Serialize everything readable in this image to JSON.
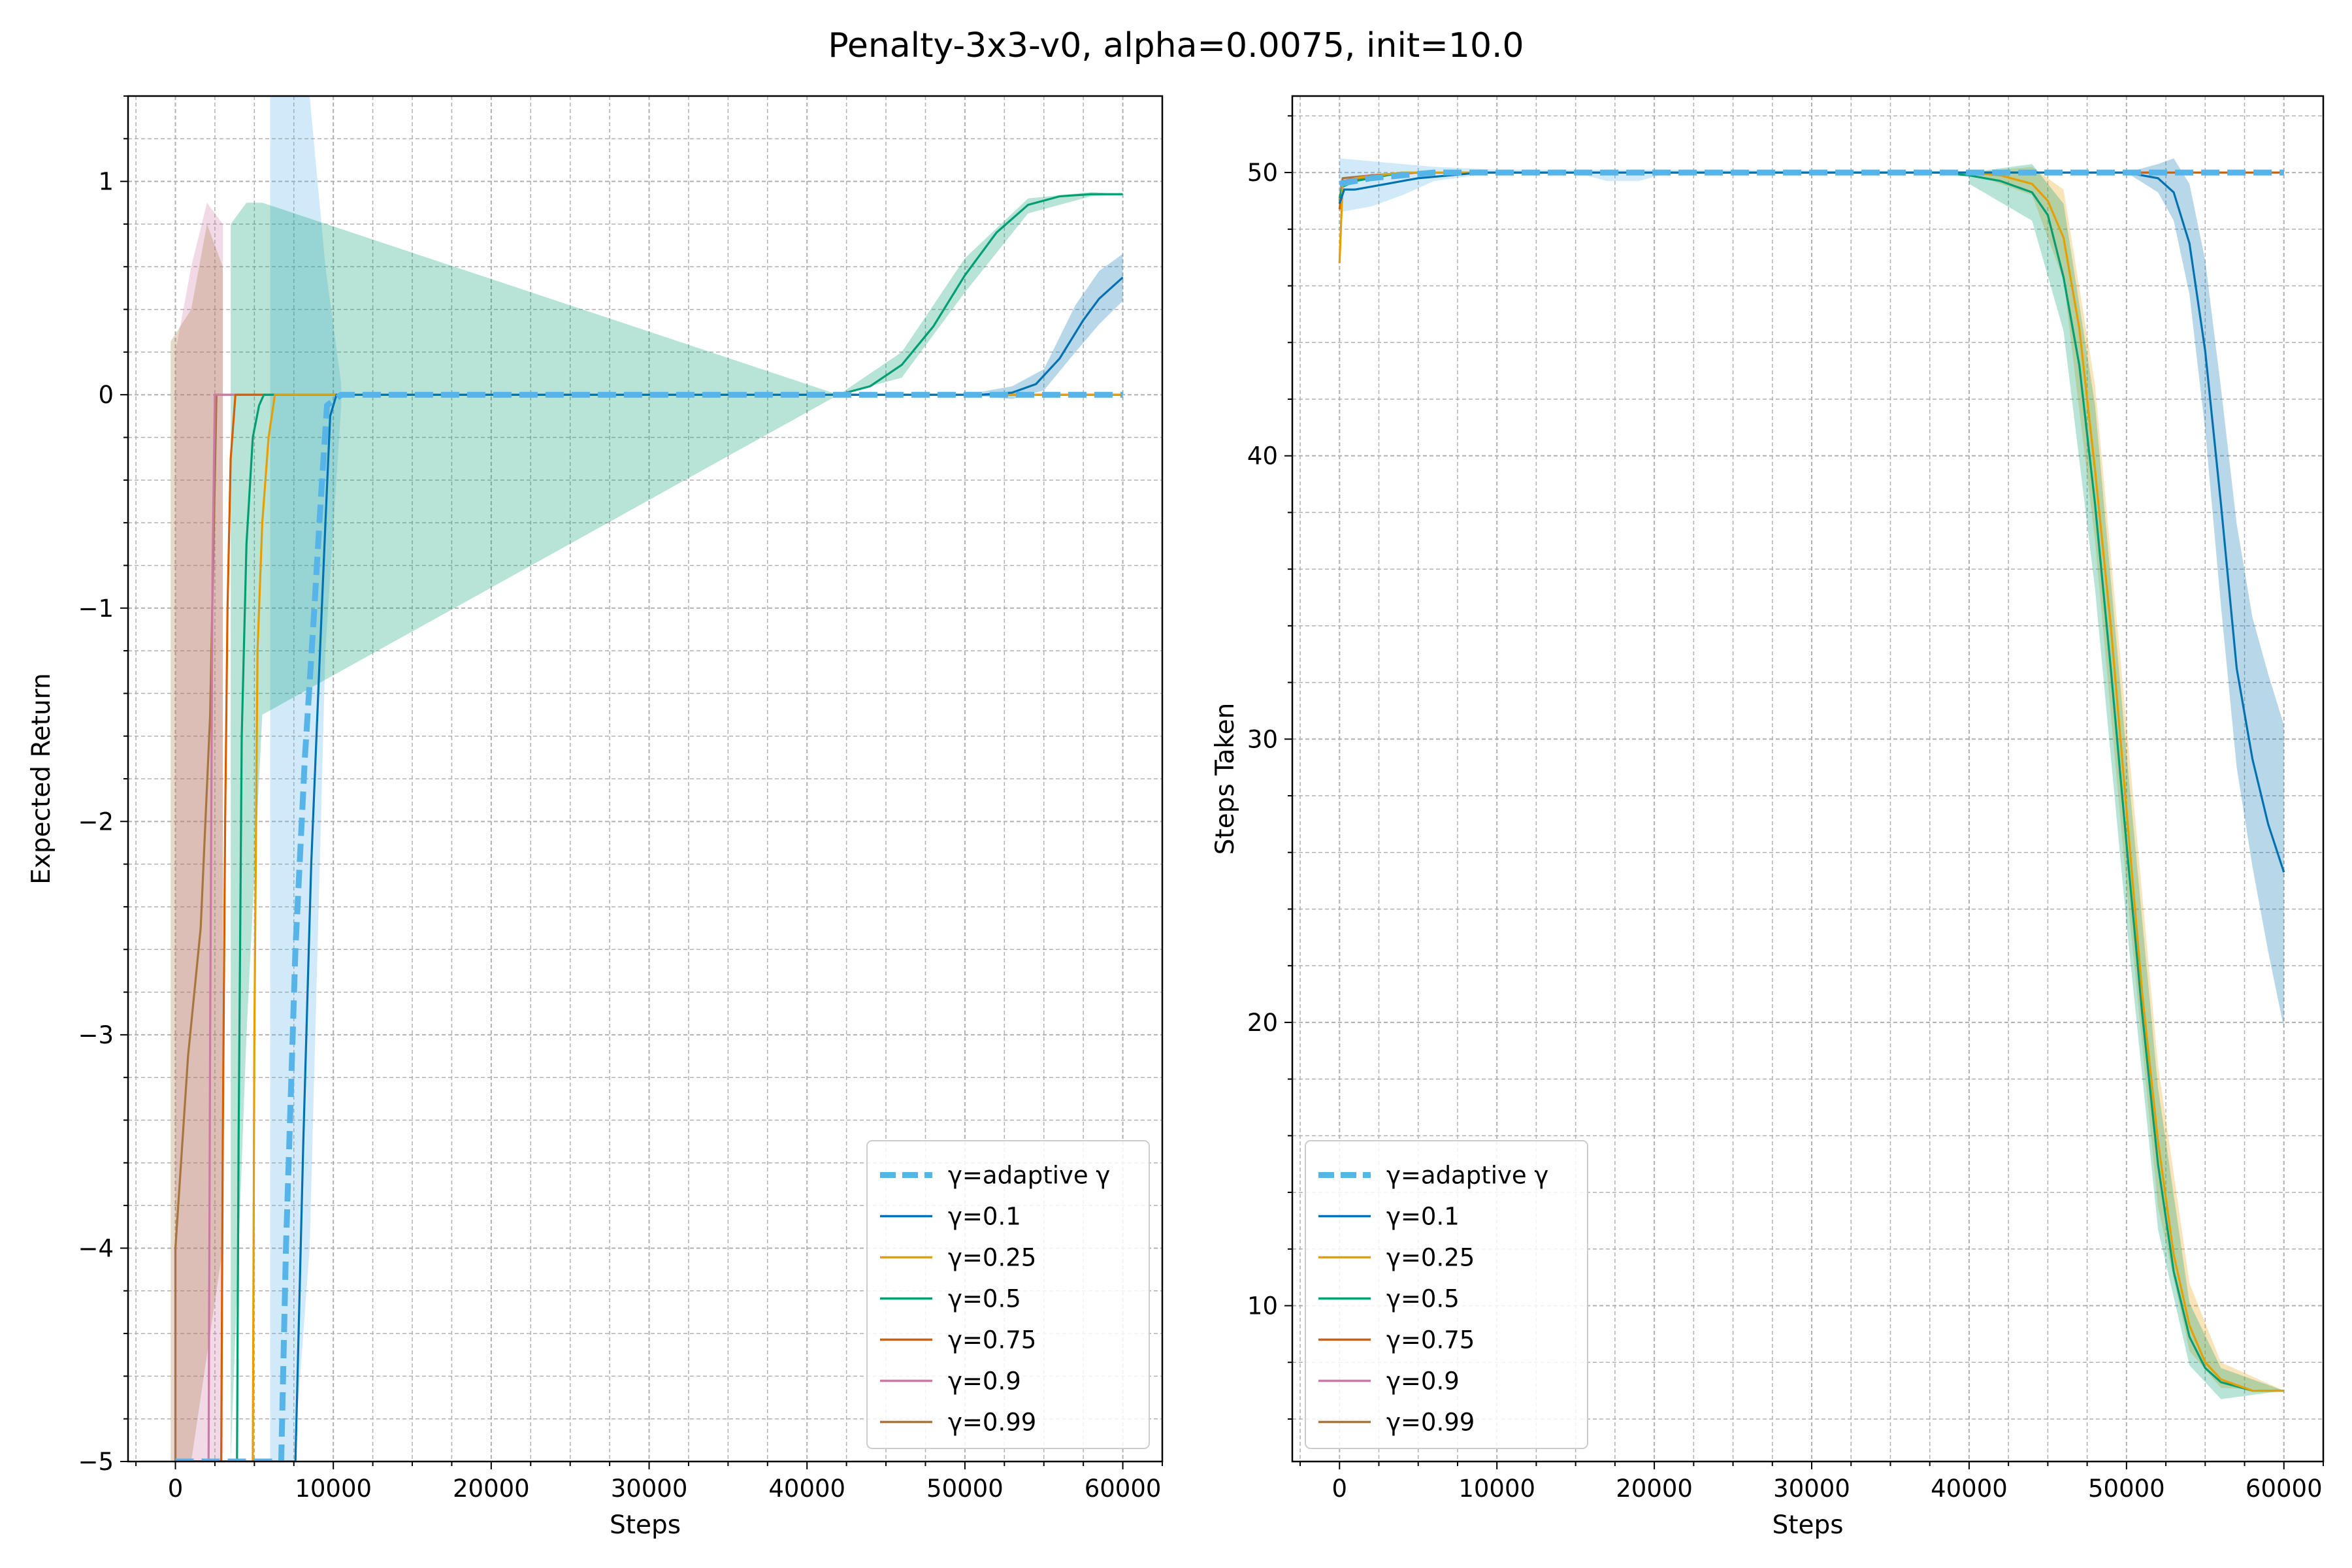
{
  "figure": {
    "title": "Penalty-3x3-v0, alpha=0.0075, init=10.0"
  },
  "legend": {
    "placement": "lower-right",
    "entries": [
      {
        "label": "γ=adaptive γ",
        "color": "#56b4e9",
        "style": "dashed"
      },
      {
        "label": "γ=0.1",
        "color": "#0072b2",
        "style": "solid"
      },
      {
        "label": "γ=0.25",
        "color": "#e69f00",
        "style": "solid"
      },
      {
        "label": "γ=0.5",
        "color": "#009e73",
        "style": "solid"
      },
      {
        "label": "γ=0.75",
        "color": "#d55e00",
        "style": "solid"
      },
      {
        "label": "γ=0.9",
        "color": "#cc79a7",
        "style": "solid"
      },
      {
        "label": "γ=0.99",
        "color": "#a6763c",
        "style": "solid"
      }
    ]
  },
  "chart_data": [
    {
      "type": "line",
      "id": "left",
      "xlabel": "Steps",
      "ylabel": "Expected Return",
      "xlim": [
        -3000,
        62500
      ],
      "ylim": [
        -5,
        1.4
      ],
      "xticks": [
        0,
        10000,
        20000,
        30000,
        40000,
        50000,
        60000
      ],
      "xtick_labels": [
        "0",
        "10000",
        "20000",
        "30000",
        "40000",
        "50000",
        "60000"
      ],
      "yticks": [
        -5,
        -4,
        -3,
        -2,
        -1,
        0,
        1
      ],
      "ytick_labels": [
        "−5",
        "−4",
        "−3",
        "−2",
        "−1",
        "0",
        "1"
      ],
      "grid": true,
      "legend": "lower-right",
      "series": [
        {
          "legend_index": 0,
          "x": [
            0,
            6700,
            7000,
            7600,
            8200,
            8800,
            9200,
            9600,
            10500,
            60000
          ],
          "y": [
            -5,
            -5,
            -4,
            -2.6,
            -1.7,
            -1.0,
            -0.5,
            -0.05,
            0,
            0
          ],
          "band_x": [
            6000,
            7500,
            8500,
            9500,
            10500
          ],
          "band_lo": [
            -5,
            -5,
            -4,
            -1.2,
            -0.05
          ],
          "band_hi": [
            1.4,
            1.4,
            1.4,
            0.6,
            0.05
          ]
        },
        {
          "legend_index": 1,
          "x": [
            0,
            7600,
            8100,
            8600,
            9100,
            9500,
            9800,
            10200,
            51000,
            53000,
            54500,
            56000,
            57500,
            58500,
            60000
          ],
          "y": [
            -5,
            -5,
            -3.5,
            -2.2,
            -1.3,
            -0.6,
            -0.1,
            0,
            0,
            0.01,
            0.05,
            0.17,
            0.35,
            0.45,
            0.55
          ],
          "band_x": [
            50000,
            53000,
            55000,
            57000,
            58500,
            60000
          ],
          "band_lo": [
            0,
            -0.02,
            0.02,
            0.2,
            0.33,
            0.44
          ],
          "band_hi": [
            0,
            0.04,
            0.12,
            0.42,
            0.58,
            0.66
          ]
        },
        {
          "legend_index": 2,
          "x": [
            0,
            4900,
            5000,
            5200,
            5500,
            5900,
            6300,
            60000
          ],
          "y": [
            -5,
            -5,
            -3,
            -1.2,
            -0.6,
            -0.2,
            0,
            0
          ],
          "band_x": [],
          "band_lo": [],
          "band_hi": []
        },
        {
          "legend_index": 3,
          "x": [
            0,
            3900,
            4000,
            4200,
            4500,
            4900,
            5300,
            5600,
            42000,
            44000,
            46000,
            48000,
            50000,
            52000,
            54000,
            56000,
            58000,
            60000
          ],
          "y": [
            -5,
            -5,
            -3.5,
            -1.6,
            -0.7,
            -0.2,
            -0.05,
            0,
            0,
            0.04,
            0.14,
            0.32,
            0.56,
            0.76,
            0.89,
            0.93,
            0.94,
            0.94
          ],
          "band_x": [
            3500,
            4500,
            5500,
            42000,
            46000,
            50000,
            54000,
            58000,
            60000
          ],
          "band_lo": [
            -5,
            -3,
            -1.5,
            0,
            0.08,
            0.48,
            0.85,
            0.93,
            0.94
          ],
          "band_hi": [
            0.8,
            0.9,
            0.9,
            0,
            0.2,
            0.64,
            0.92,
            0.95,
            0.94
          ]
        },
        {
          "legend_index": 4,
          "x": [
            0,
            2900,
            3000,
            3150,
            3300,
            3500,
            3800,
            60000
          ],
          "y": [
            -5,
            -5,
            -3.5,
            -2.0,
            -1.0,
            -0.3,
            0,
            0
          ],
          "band_x": [],
          "band_lo": [],
          "band_hi": []
        },
        {
          "legend_index": 5,
          "x": [
            0,
            2100,
            2200,
            2350,
            2500,
            60000
          ],
          "y": [
            -5,
            -5,
            -3,
            -0.8,
            0,
            0
          ],
          "band_x": [
            0,
            1000,
            2000,
            3000
          ],
          "band_lo": [
            -5,
            -5,
            -5,
            -5
          ],
          "band_hi": [
            0.2,
            0.6,
            0.9,
            0.8
          ]
        },
        {
          "legend_index": 6,
          "x": [
            0,
            0,
            800,
            1600,
            2200,
            2600,
            60000
          ],
          "y": [
            -5,
            -4,
            -3.1,
            -2.5,
            -1.5,
            0,
            0
          ],
          "band_x": [
            -300,
            1000,
            2000,
            3000
          ],
          "band_lo": [
            -5,
            -5,
            -4.5,
            -4
          ],
          "band_hi": [
            0.25,
            0.4,
            0.8,
            0.6
          ]
        }
      ]
    },
    {
      "type": "line",
      "id": "right",
      "xlabel": "Steps",
      "ylabel": "Steps Taken",
      "xlim": [
        -3000,
        62500
      ],
      "ylim": [
        4.5,
        52.7
      ],
      "xticks": [
        0,
        10000,
        20000,
        30000,
        40000,
        50000,
        60000
      ],
      "xtick_labels": [
        "0",
        "10000",
        "20000",
        "30000",
        "40000",
        "50000",
        "60000"
      ],
      "yticks": [
        10,
        20,
        30,
        40,
        50
      ],
      "ytick_labels": [
        "10",
        "20",
        "30",
        "40",
        "50"
      ],
      "grid": true,
      "legend": "lower-left",
      "series": [
        {
          "legend_index": 0,
          "x": [
            0,
            2000,
            4000,
            6000,
            8000,
            60000
          ],
          "y": [
            49.6,
            49.8,
            49.9,
            50,
            50,
            50
          ],
          "band_x": [
            0,
            2000,
            4000,
            6000,
            10000,
            15000,
            17000,
            19000,
            21000,
            60000
          ],
          "band_lo": [
            48.6,
            48.8,
            49.2,
            49.7,
            50,
            50,
            49.7,
            49.7,
            50,
            50
          ],
          "band_hi": [
            50.5,
            50.4,
            50.3,
            50.2,
            50.1,
            50.1,
            50.1,
            50.1,
            50.1,
            50
          ]
        },
        {
          "legend_index": 1,
          "x": [
            0,
            300,
            1000,
            3000,
            5000,
            7000,
            9000,
            50000,
            52000,
            53000,
            54000,
            55000,
            56000,
            57000,
            58000,
            59000,
            60000
          ],
          "y": [
            48.9,
            49.4,
            49.4,
            49.6,
            49.8,
            49.9,
            50,
            50,
            49.8,
            49.3,
            47.5,
            43.7,
            38.3,
            32.5,
            29.3,
            27,
            25.3
          ],
          "band_x": [
            50000,
            52000,
            53000,
            54000,
            55000,
            56000,
            57000,
            58000,
            59000,
            60000
          ],
          "band_lo": [
            50,
            49.3,
            48.3,
            45.7,
            40.9,
            34.7,
            29,
            25.5,
            22.5,
            19.8
          ],
          "band_hi": [
            50,
            50.3,
            50.5,
            49.6,
            46.9,
            42.4,
            37.6,
            34.3,
            32.3,
            30.5
          ]
        },
        {
          "legend_index": 2,
          "x": [
            0,
            200,
            1000,
            4000,
            8000,
            40000,
            42000,
            44000,
            45000,
            46000,
            47000,
            48000,
            49000,
            50000,
            51000,
            52000,
            53000,
            54000,
            55000,
            56000,
            58000,
            60000
          ],
          "y": [
            46.8,
            49.6,
            49.8,
            50,
            50,
            50,
            49.9,
            49.6,
            49,
            47.7,
            44.5,
            39.5,
            34,
            27.5,
            21,
            15.8,
            11.8,
            9.3,
            8,
            7.4,
            7,
            7
          ],
          "band_x": [
            40000,
            44000,
            46000,
            48000,
            50000,
            52000,
            54000,
            56000,
            60000
          ],
          "band_lo": [
            50,
            49.2,
            46.2,
            37,
            24.8,
            13.5,
            8.4,
            7.1,
            7
          ],
          "band_hi": [
            50,
            50.2,
            49.4,
            42.5,
            30.5,
            18.5,
            10.8,
            8,
            7
          ]
        },
        {
          "legend_index": 3,
          "x": [
            0,
            200,
            1000,
            4000,
            8000,
            38000,
            40000,
            42000,
            44000,
            45000,
            46000,
            47000,
            48000,
            49000,
            50000,
            51000,
            52000,
            53000,
            54000,
            55000,
            56000,
            58000,
            60000
          ],
          "y": [
            49.1,
            49.5,
            49.7,
            50,
            50,
            50,
            49.9,
            49.7,
            49.3,
            48.5,
            46.3,
            43.2,
            38.3,
            32.5,
            26.3,
            20.3,
            15,
            11.2,
            8.9,
            7.8,
            7.3,
            7,
            7
          ],
          "band_x": [
            40000,
            44000,
            46000,
            48000,
            50000,
            52000,
            54000,
            56000,
            60000
          ],
          "band_lo": [
            49.6,
            48.3,
            44.4,
            35.3,
            23.5,
            12.7,
            7.9,
            6.7,
            7
          ],
          "band_hi": [
            50,
            50.3,
            48.9,
            41.8,
            29.5,
            17.7,
            10.1,
            7.8,
            7
          ]
        },
        {
          "legend_index": 4,
          "x": [
            0,
            200,
            2000,
            5000,
            60000
          ],
          "y": [
            48.7,
            49.6,
            49.9,
            50,
            50
          ],
          "band_x": [],
          "band_lo": [],
          "band_hi": []
        },
        {
          "legend_index": 5,
          "x": [
            0,
            200,
            2000,
            5000,
            60000
          ],
          "y": [
            48.9,
            49.7,
            49.9,
            50,
            50
          ],
          "band_x": [],
          "band_lo": [],
          "band_hi": []
        },
        {
          "legend_index": 6,
          "x": [
            0,
            200,
            2000,
            5000,
            60000
          ],
          "y": [
            49,
            49.8,
            49.9,
            50,
            50
          ],
          "band_x": [],
          "band_lo": [],
          "band_hi": []
        }
      ]
    }
  ]
}
